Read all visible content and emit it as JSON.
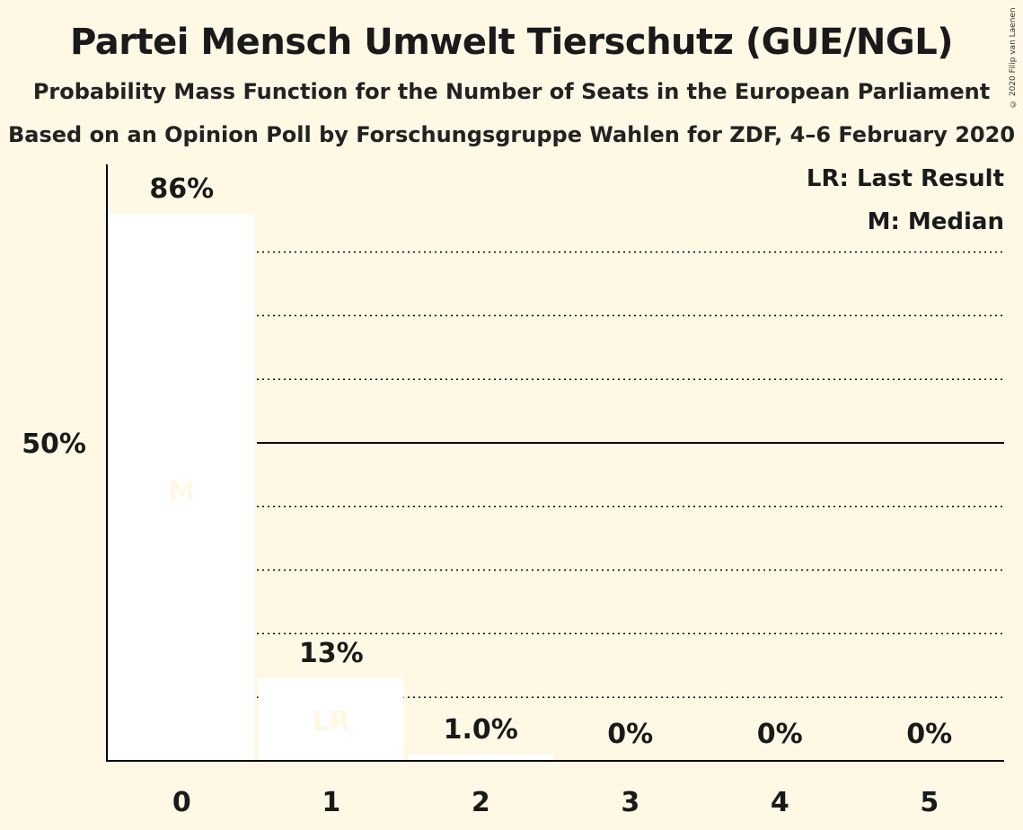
{
  "header": {
    "title": "Partei Mensch Umwelt Tierschutz (GUE/NGL)",
    "subtitle": "Probability Mass Function for the Number of Seats in the European Parliament",
    "poll_note": "Based on an Opinion Poll by Forschungsgruppe Wahlen for ZDF, 4–6 February 2020",
    "copyright": "© 2020 Filip van Laenen"
  },
  "legend": {
    "last_result": "LR: Last Result",
    "median": "M: Median"
  },
  "colors": {
    "background": "#fef8e5",
    "bar": "#ffffff",
    "axis": "#000000",
    "text": "#1a1a1a"
  },
  "chart_data": {
    "type": "bar",
    "categories": [
      "0",
      "1",
      "2",
      "3",
      "4",
      "5"
    ],
    "values": [
      86,
      13,
      1.0,
      0,
      0,
      0
    ],
    "value_labels": [
      "86%",
      "13%",
      "1.0%",
      "0%",
      "0%",
      "0%"
    ],
    "bar_markers": [
      "M",
      "LR",
      "",
      "",
      "",
      ""
    ],
    "xlabel": "",
    "ylabel": "",
    "ylim": [
      0,
      94
    ],
    "y_ticks": [
      {
        "value": 50,
        "label": "50%"
      }
    ],
    "gridlines_dotted": [
      10,
      20,
      30,
      40,
      60,
      70,
      80
    ],
    "gridline_solid": 50,
    "legend_position": "top-right"
  }
}
